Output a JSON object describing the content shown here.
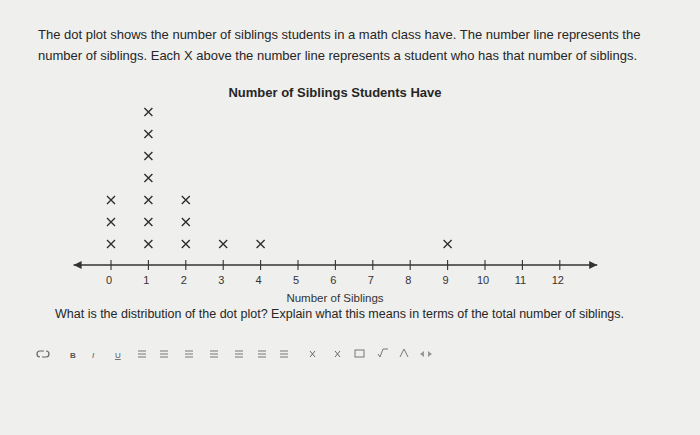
{
  "prompt": "The dot plot shows the number of siblings students in a math class have. The number line represents the number of siblings. Each X above the number line represents a student who has that number of siblings.",
  "chart_data": {
    "type": "dot",
    "title": "Number of Siblings Students Have",
    "x_label": "Number of Siblings",
    "x": [
      0,
      1,
      2,
      3,
      4,
      5,
      6,
      7,
      8,
      9,
      10,
      11,
      12
    ],
    "values": [
      3,
      7,
      3,
      1,
      1,
      0,
      0,
      0,
      0,
      1,
      0,
      0,
      0
    ],
    "marker": "x",
    "color": "#2b2b2b",
    "xlim": [
      -1,
      13
    ],
    "xticks": [
      0,
      1,
      2,
      3,
      4,
      5,
      6,
      7,
      8,
      9,
      10,
      11,
      12
    ],
    "tick_labels": "x"
  },
  "question": "What is the distribution of the dot plot? Explain what this means in terms of the total number of siblings.",
  "toolbar": [
    "B",
    "I",
    "U"
  ]
}
